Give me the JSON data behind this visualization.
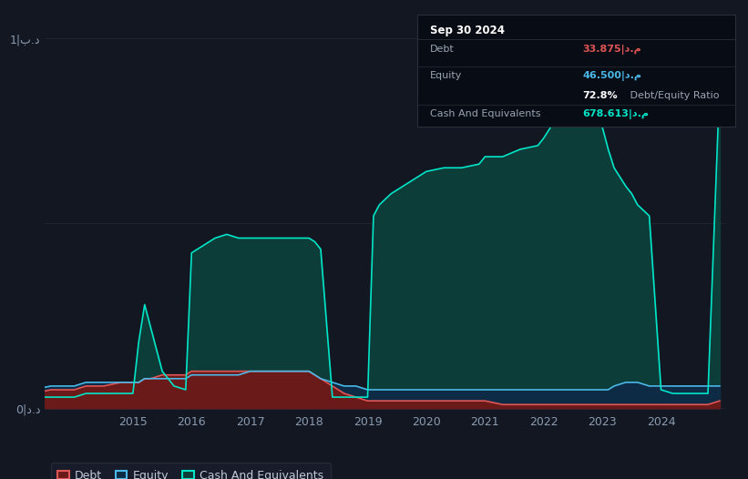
{
  "bg_color": "#131722",
  "plot_bg_color": "#131722",
  "grid_color": "#1e2535",
  "y_label_top": "1|ب.د",
  "y_label_bot": "0|د.د",
  "x_ticks": [
    2015,
    2016,
    2017,
    2018,
    2019,
    2020,
    2021,
    2022,
    2023,
    2024
  ],
  "debt_color": "#e05555",
  "equity_color": "#4ab8e8",
  "cash_color": "#00e5c8",
  "debt_fill": "#6b1a1a",
  "equity_fill": "#0d2b45",
  "cash_fill": "#0d3d38",
  "legend_labels": [
    "Debt",
    "Equity",
    "Cash And Equivalents"
  ],
  "tooltip": {
    "date": "Sep 30 2024",
    "debt_label": "Debt",
    "debt_value": "33.875|د.م",
    "debt_color": "#e05555",
    "equity_label": "Equity",
    "equity_value": "46.500|د.م",
    "equity_color": "#4ab8e8",
    "ratio_bold": "72.8%",
    "ratio_text": " Debt/Equity Ratio",
    "cash_label": "Cash And Equivalents",
    "cash_value": "678.613|د.م",
    "cash_color": "#00e5c8",
    "bg": "#080c14",
    "border": "#2a2e39",
    "text_color": "#9ba3b2"
  },
  "years": [
    2013.0,
    2013.3,
    2013.6,
    2013.9,
    2014.0,
    2014.2,
    2014.5,
    2014.8,
    2015.0,
    2015.1,
    2015.2,
    2015.3,
    2015.5,
    2015.7,
    2015.9,
    2016.0,
    2016.2,
    2016.4,
    2016.6,
    2016.8,
    2017.0,
    2017.2,
    2017.5,
    2017.8,
    2018.0,
    2018.1,
    2018.2,
    2018.4,
    2018.6,
    2018.8,
    2019.0,
    2019.1,
    2019.2,
    2019.4,
    2019.6,
    2019.8,
    2020.0,
    2020.3,
    2020.6,
    2020.9,
    2021.0,
    2021.3,
    2021.6,
    2021.9,
    2022.0,
    2022.2,
    2022.4,
    2022.5,
    2022.6,
    2022.8,
    2023.0,
    2023.1,
    2023.2,
    2023.4,
    2023.5,
    2023.6,
    2023.8,
    2024.0,
    2024.2,
    2024.5,
    2024.8,
    2025.0
  ],
  "debt": [
    0.04,
    0.04,
    0.05,
    0.05,
    0.05,
    0.06,
    0.06,
    0.07,
    0.07,
    0.07,
    0.08,
    0.08,
    0.09,
    0.09,
    0.09,
    0.1,
    0.1,
    0.1,
    0.1,
    0.1,
    0.1,
    0.1,
    0.1,
    0.1,
    0.1,
    0.09,
    0.08,
    0.06,
    0.04,
    0.03,
    0.02,
    0.02,
    0.02,
    0.02,
    0.02,
    0.02,
    0.02,
    0.02,
    0.02,
    0.02,
    0.02,
    0.01,
    0.01,
    0.01,
    0.01,
    0.01,
    0.01,
    0.01,
    0.01,
    0.01,
    0.01,
    0.01,
    0.01,
    0.01,
    0.01,
    0.01,
    0.01,
    0.01,
    0.01,
    0.01,
    0.01,
    0.02
  ],
  "equity": [
    0.05,
    0.05,
    0.06,
    0.06,
    0.06,
    0.07,
    0.07,
    0.07,
    0.07,
    0.07,
    0.08,
    0.08,
    0.08,
    0.08,
    0.08,
    0.09,
    0.09,
    0.09,
    0.09,
    0.09,
    0.1,
    0.1,
    0.1,
    0.1,
    0.1,
    0.09,
    0.08,
    0.07,
    0.06,
    0.06,
    0.05,
    0.05,
    0.05,
    0.05,
    0.05,
    0.05,
    0.05,
    0.05,
    0.05,
    0.05,
    0.05,
    0.05,
    0.05,
    0.05,
    0.05,
    0.05,
    0.05,
    0.05,
    0.05,
    0.05,
    0.05,
    0.05,
    0.06,
    0.07,
    0.07,
    0.07,
    0.06,
    0.06,
    0.06,
    0.06,
    0.06,
    0.06
  ],
  "cash": [
    0.03,
    0.03,
    0.03,
    0.03,
    0.03,
    0.04,
    0.04,
    0.04,
    0.04,
    0.18,
    0.28,
    0.22,
    0.1,
    0.06,
    0.05,
    0.42,
    0.44,
    0.46,
    0.47,
    0.46,
    0.46,
    0.46,
    0.46,
    0.46,
    0.46,
    0.45,
    0.43,
    0.03,
    0.03,
    0.03,
    0.03,
    0.52,
    0.55,
    0.58,
    0.6,
    0.62,
    0.64,
    0.65,
    0.65,
    0.66,
    0.68,
    0.68,
    0.7,
    0.71,
    0.73,
    0.78,
    0.82,
    0.85,
    0.82,
    0.8,
    0.76,
    0.7,
    0.65,
    0.6,
    0.58,
    0.55,
    0.52,
    0.05,
    0.04,
    0.04,
    0.04,
    0.88
  ]
}
